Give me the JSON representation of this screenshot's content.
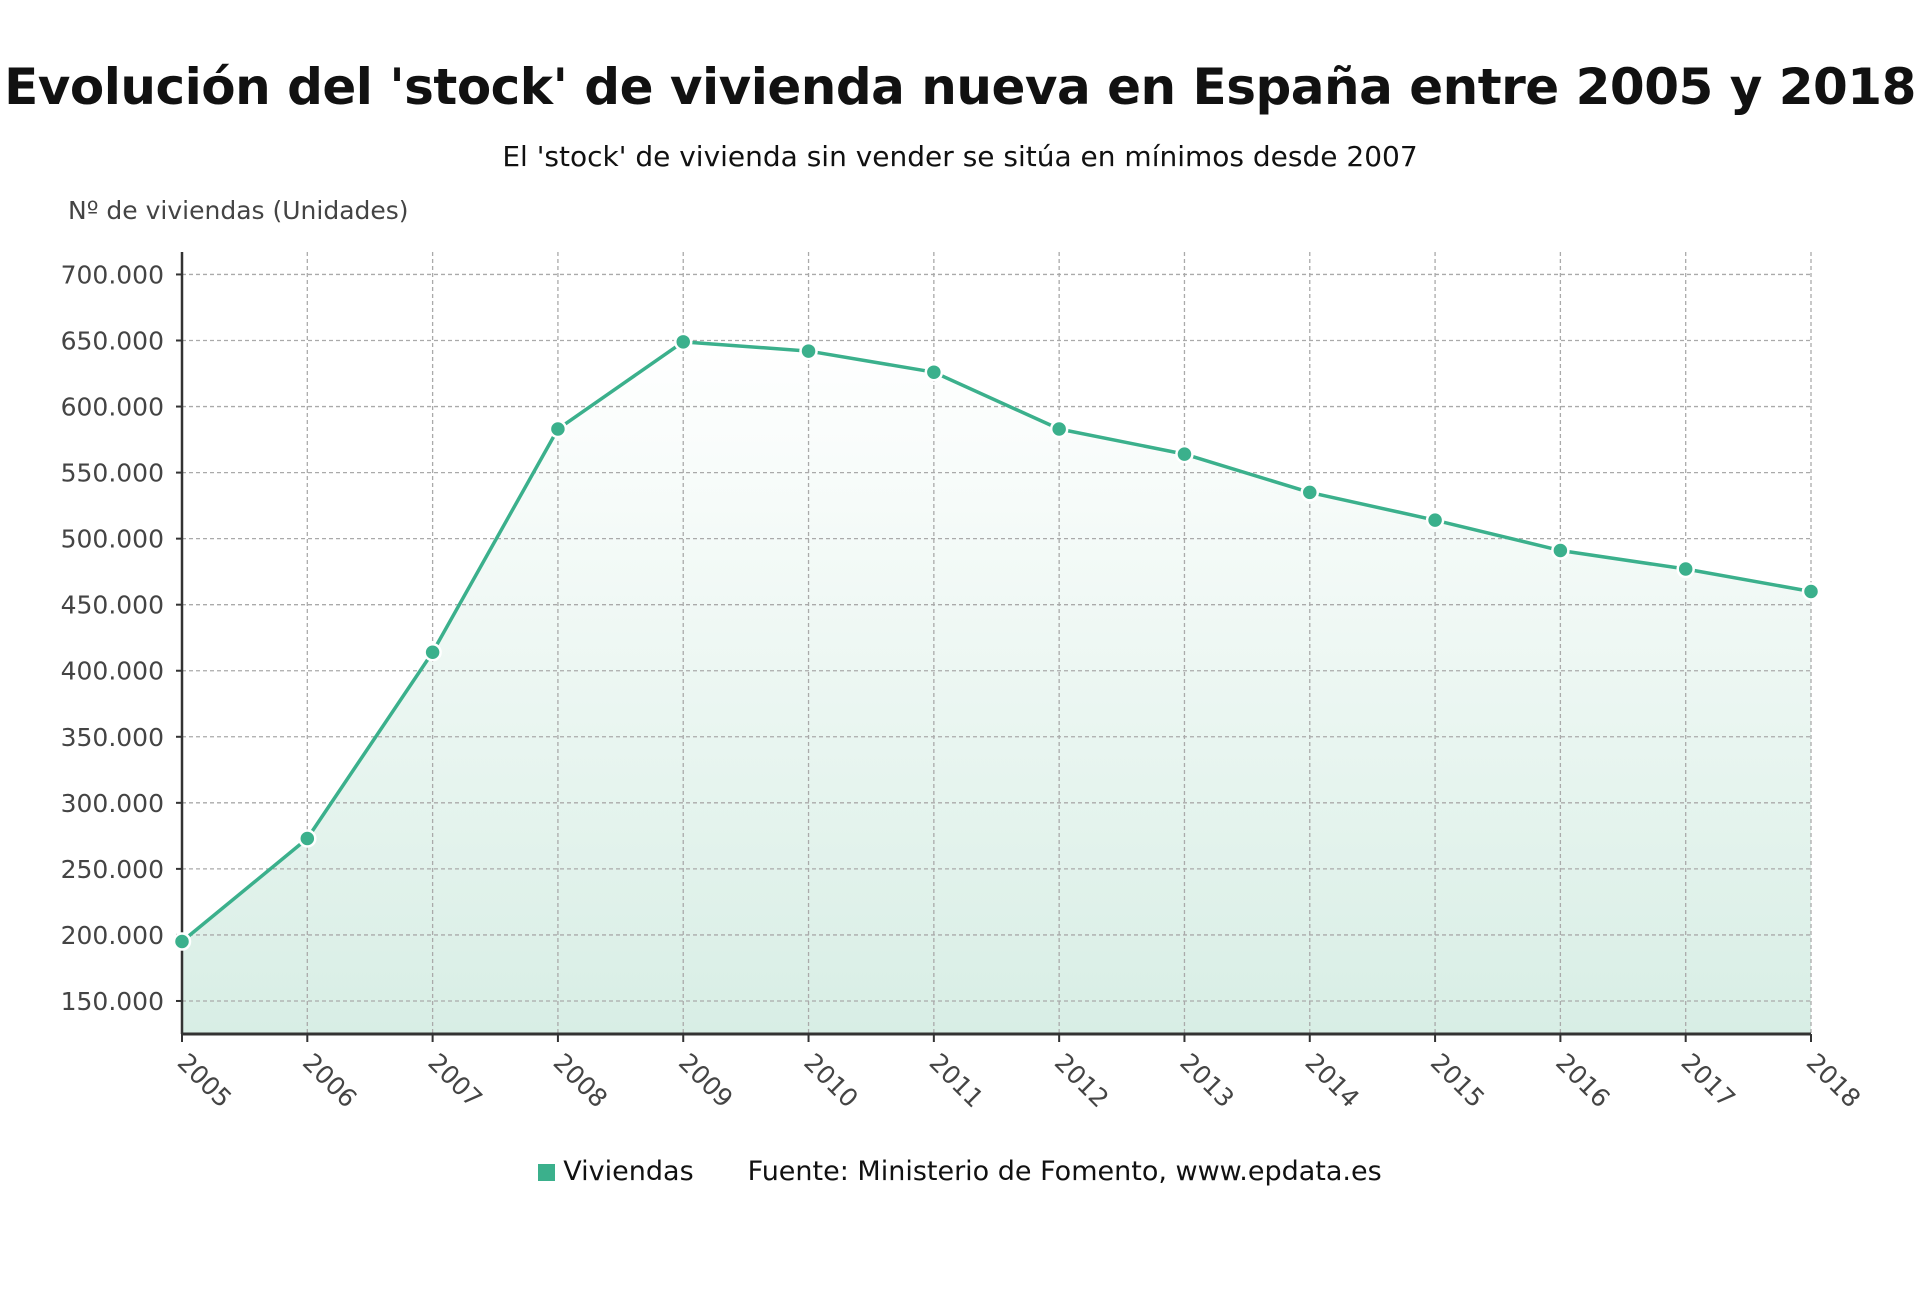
{
  "title": "Evolución del 'stock' de vivienda nueva en España entre 2005 y 2018",
  "subtitle": "El 'stock' de vivienda sin vender se sitúa en mínimos desde 2007",
  "source": "Fuente: Ministerio de Fomento, www.epdata.es",
  "colors": {
    "series": "#3bb08c",
    "fill_top": "#ffffff",
    "fill_bottom": "#d8eee5",
    "grid": "#aaaaaa",
    "axis": "#333333"
  },
  "chart_data": {
    "type": "area",
    "title": "Evolución del 'stock' de vivienda nueva en España entre 2005 y 2018",
    "subtitle": "El 'stock' de vivienda sin vender se sitúa en mínimos desde 2007",
    "ylabel": "Nº de viviendas (Unidades)",
    "xlabel": "",
    "categories": [
      "2005",
      "2006",
      "2007",
      "2008",
      "2009",
      "2010",
      "2011",
      "2012",
      "2013",
      "2014",
      "2015",
      "2016",
      "2017",
      "2018"
    ],
    "series": [
      {
        "name": "Viviendas",
        "values": [
          195000,
          273000,
          414000,
          583000,
          649000,
          642000,
          626000,
          583000,
          564000,
          535000,
          514000,
          491000,
          477000,
          460000
        ]
      }
    ],
    "yticks": [
      150000,
      200000,
      250000,
      300000,
      350000,
      400000,
      450000,
      500000,
      550000,
      600000,
      650000,
      700000
    ],
    "ytick_labels": [
      "150.000",
      "200.000",
      "250.000",
      "300.000",
      "350.000",
      "400.000",
      "450.000",
      "500.000",
      "550.000",
      "600.000",
      "650.000",
      "700.000"
    ],
    "ylim": [
      125000,
      717000
    ],
    "grid": true,
    "legend_position": "bottom"
  }
}
